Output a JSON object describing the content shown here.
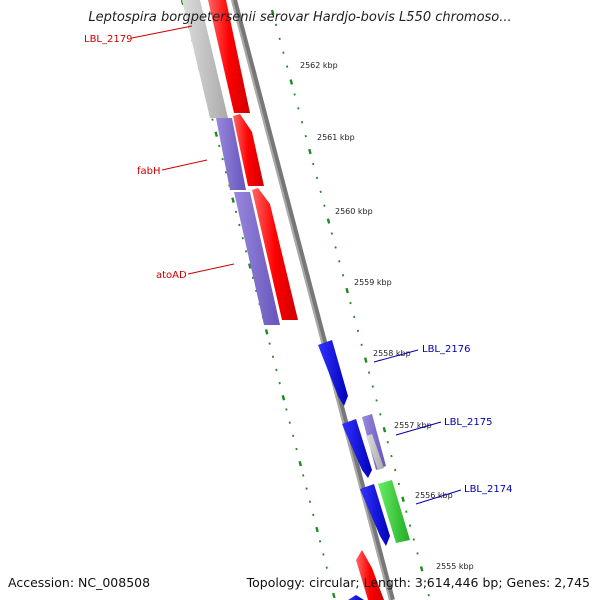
{
  "title": "Leptospira borgpetersenii serovar Hardjo-bovis L550 chromoso...",
  "footer": {
    "accession": "Accession: NC_008508",
    "summary": "Topology: circular; Length: 3,614,446 bp; Genes: 2,745"
  },
  "ruler_labels": [
    "2562 kbp",
    "2561 kbp",
    "2560 kbp",
    "2559 kbp",
    "2558 kbp",
    "2557 kbp",
    "2556 kbp",
    "2555 kbp"
  ],
  "gene_labels": {
    "LBL_2179": "LBL_2179",
    "fabH": "fabH",
    "atoAD": "atoAD",
    "LBL_2176": "LBL_2176",
    "LBL_2175": "LBL_2175",
    "LBL_2174": "LBL_2174"
  },
  "colors": {
    "forward_cds": "#ff0000",
    "reverse_cds": "#0000e6",
    "cog": "#7766cc",
    "green": "#33cc33",
    "grey": "#bbbbbb",
    "ticks": "#228822",
    "label_red": "#cc0000",
    "label_blue": "#0000aa"
  }
}
